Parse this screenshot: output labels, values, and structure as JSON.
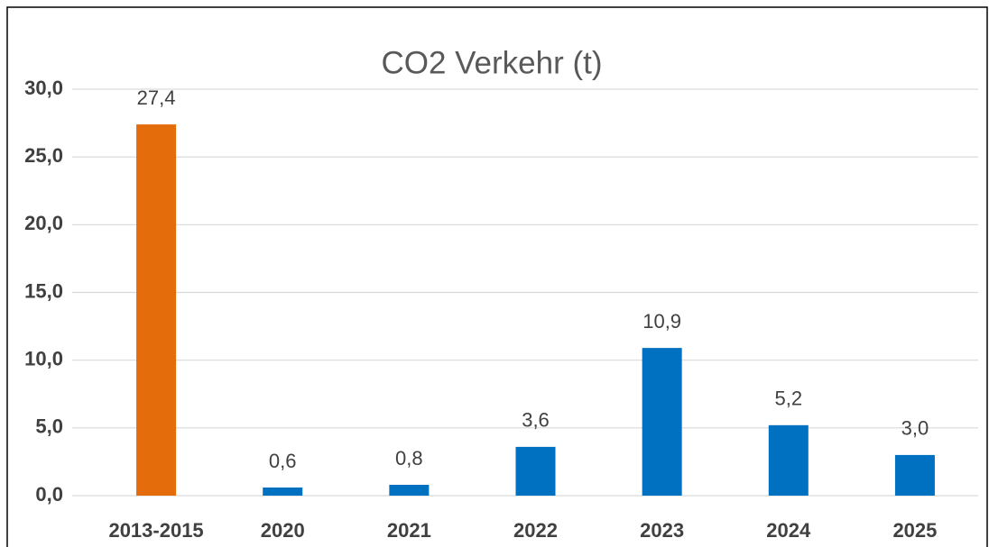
{
  "chart_data": {
    "type": "bar",
    "title": "CO2 Verkehr (t)",
    "categories": [
      "2013-2015",
      "2020",
      "2021",
      "2022",
      "2023",
      "2024",
      "2025"
    ],
    "values": [
      27.4,
      0.6,
      0.8,
      3.6,
      10.9,
      5.2,
      3.0
    ],
    "value_labels": [
      "27,4",
      "0,6",
      "0,8",
      "3,6",
      "10,9",
      "5,2",
      "3,0"
    ],
    "colors": [
      "#e46c0a",
      "#0070c0",
      "#0070c0",
      "#0070c0",
      "#0070c0",
      "#0070c0",
      "#0070c0"
    ],
    "ylim": [
      0,
      30
    ],
    "yticks": [
      {
        "value": 0,
        "label": "0,0"
      },
      {
        "value": 5,
        "label": "5,0"
      },
      {
        "value": 10,
        "label": "10,0"
      },
      {
        "value": 15,
        "label": "15,0"
      },
      {
        "value": 20,
        "label": "20,0"
      },
      {
        "value": 25,
        "label": "25,0"
      },
      {
        "value": 30,
        "label": "30,0"
      }
    ],
    "grid": true
  }
}
